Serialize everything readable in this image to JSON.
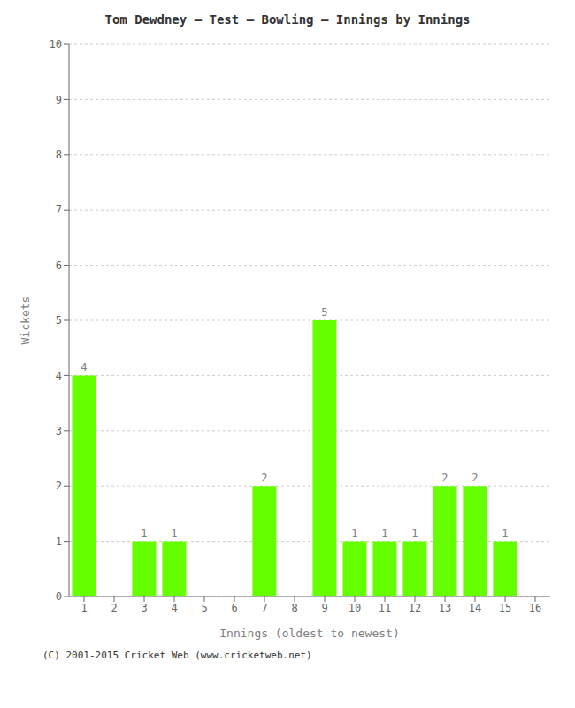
{
  "chart_data": {
    "type": "bar",
    "title": "Tom Dewdney – Test – Bowling – Innings by Innings",
    "xlabel": "Innings (oldest to newest)",
    "ylabel": "Wickets",
    "categories": [
      "1",
      "2",
      "3",
      "4",
      "5",
      "6",
      "7",
      "8",
      "9",
      "10",
      "11",
      "12",
      "13",
      "14",
      "15",
      "16"
    ],
    "values": [
      4,
      0,
      1,
      1,
      0,
      0,
      2,
      0,
      5,
      1,
      1,
      1,
      2,
      2,
      1,
      0
    ],
    "color": "#66ff00",
    "ylim": [
      0,
      10
    ],
    "yticks": [
      0,
      1,
      2,
      3,
      4,
      5,
      6,
      7,
      8,
      9,
      10
    ],
    "grid": true,
    "data_labels": true,
    "annotations": [
      "(C) 2001-2015 Cricket Web (www.cricketweb.net)"
    ]
  }
}
